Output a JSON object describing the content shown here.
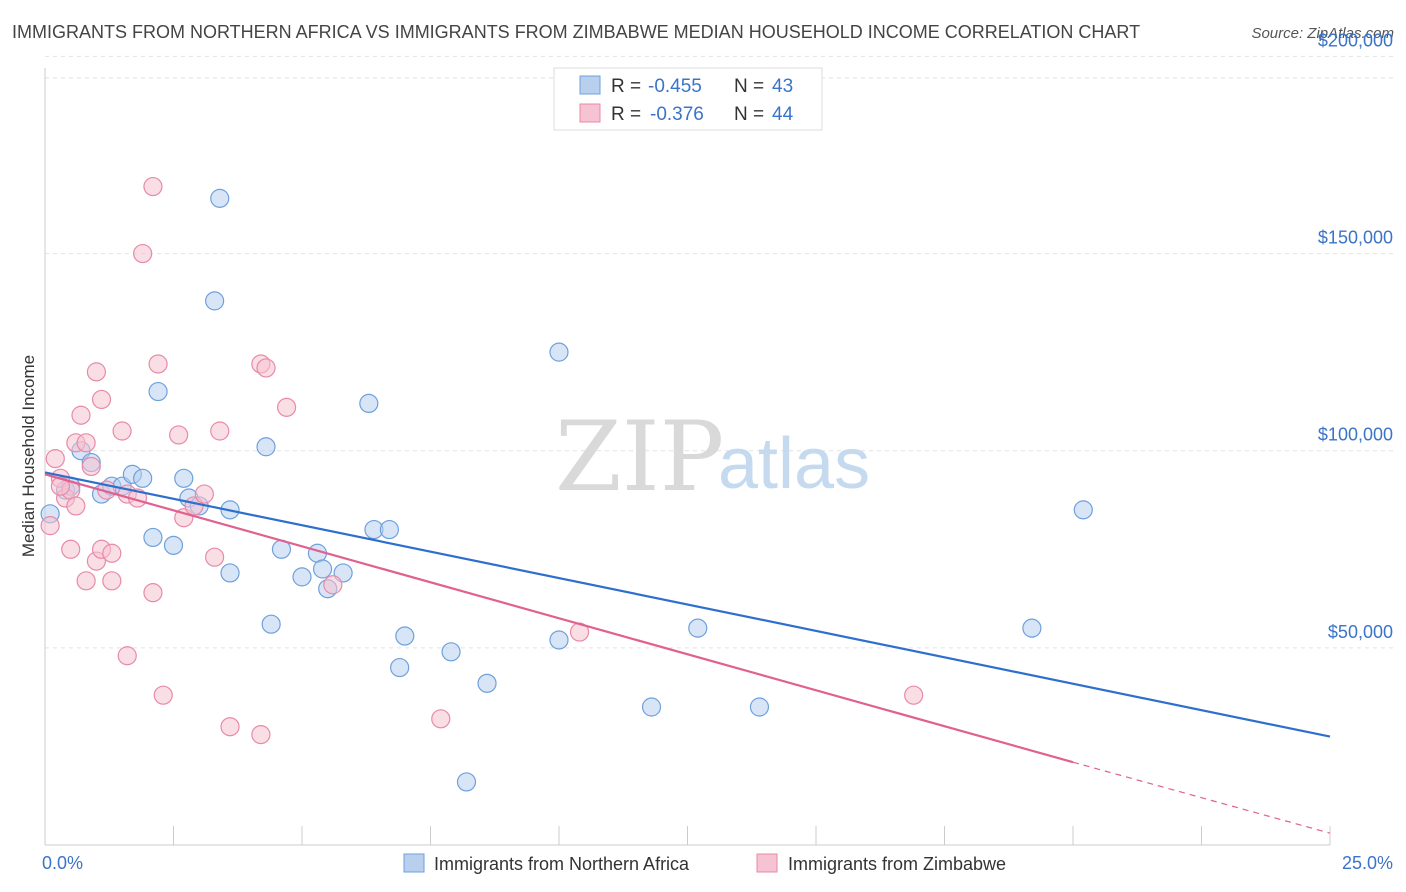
{
  "title": "IMMIGRANTS FROM NORTHERN AFRICA VS IMMIGRANTS FROM ZIMBABWE MEDIAN HOUSEHOLD INCOME CORRELATION CHART",
  "source": "Source: ZipAtlas.com",
  "watermark": {
    "zip": "ZIP",
    "atlas": "atlas"
  },
  "legend": {
    "r_label": "R =",
    "n_label": "N =",
    "rows": [
      {
        "r": "-0.455",
        "n": "43"
      },
      {
        "r": "-0.376",
        "n": "44"
      }
    ]
  },
  "colors": {
    "blue_fill": "#b8d0ee",
    "blue_stroke": "#6fa0dc",
    "blue_line": "#2e6fce",
    "pink_fill": "#f6c3d2",
    "pink_stroke": "#e88aa8",
    "pink_line": "#e06090"
  },
  "chart_data": {
    "type": "scatter",
    "xlabel": "",
    "ylabel": "Median Household Income",
    "xlim": [
      0,
      25
    ],
    "ylim": [
      0,
      210000
    ],
    "x_tick_labels": [
      {
        "value": 0,
        "label": "0.0%"
      },
      {
        "value": 25,
        "label": "25.0%"
      }
    ],
    "y_tick_labels": [
      {
        "value": 50000,
        "label": "$50,000"
      },
      {
        "value": 100000,
        "label": "$100,000"
      },
      {
        "value": 150000,
        "label": "$150,000"
      },
      {
        "value": 200000,
        "label": "$200,000"
      }
    ],
    "grid": true,
    "legend_position": "top-center",
    "series": [
      {
        "name": "Immigrants from Northern Africa",
        "trend": {
          "x": [
            0,
            25
          ],
          "y": [
            94500,
            27500
          ]
        },
        "points": [
          [
            0.1,
            84000
          ],
          [
            0.4,
            90000
          ],
          [
            0.5,
            91000
          ],
          [
            0.7,
            100000
          ],
          [
            0.9,
            97000
          ],
          [
            1.1,
            89000
          ],
          [
            1.3,
            91000
          ],
          [
            1.5,
            91000
          ],
          [
            1.7,
            94000
          ],
          [
            1.9,
            93000
          ],
          [
            2.1,
            78000
          ],
          [
            2.2,
            115000
          ],
          [
            2.5,
            76000
          ],
          [
            2.7,
            93000
          ],
          [
            2.8,
            88000
          ],
          [
            3.0,
            86000
          ],
          [
            3.3,
            138000
          ],
          [
            3.4,
            164000
          ],
          [
            3.6,
            85000
          ],
          [
            3.6,
            69000
          ],
          [
            4.3,
            101000
          ],
          [
            4.4,
            56000
          ],
          [
            4.6,
            75000
          ],
          [
            5.0,
            68000
          ],
          [
            5.3,
            74000
          ],
          [
            5.4,
            70000
          ],
          [
            5.5,
            65000
          ],
          [
            5.8,
            69000
          ],
          [
            6.3,
            112000
          ],
          [
            6.4,
            80000
          ],
          [
            6.7,
            80000
          ],
          [
            6.9,
            45000
          ],
          [
            7.0,
            53000
          ],
          [
            7.9,
            49000
          ],
          [
            8.2,
            16000
          ],
          [
            8.6,
            41000
          ],
          [
            10.0,
            52000
          ],
          [
            10.0,
            125000
          ],
          [
            11.8,
            35000
          ],
          [
            12.7,
            55000
          ],
          [
            13.9,
            35000
          ],
          [
            19.2,
            55000
          ],
          [
            20.2,
            85000
          ]
        ]
      },
      {
        "name": "Immigrants from Zimbabwe",
        "trend": {
          "x": [
            0,
            20
          ],
          "y": [
            94000,
            21000
          ]
        },
        "trend_dashed": {
          "x": [
            20,
            25
          ],
          "y": [
            21000,
            3000
          ]
        },
        "points": [
          [
            0.1,
            81000
          ],
          [
            0.2,
            98000
          ],
          [
            0.3,
            93000
          ],
          [
            0.4,
            88000
          ],
          [
            0.5,
            75000
          ],
          [
            0.5,
            90000
          ],
          [
            0.6,
            102000
          ],
          [
            0.6,
            86000
          ],
          [
            0.7,
            109000
          ],
          [
            0.8,
            102000
          ],
          [
            0.8,
            67000
          ],
          [
            0.9,
            96000
          ],
          [
            1.0,
            120000
          ],
          [
            1.0,
            72000
          ],
          [
            1.1,
            113000
          ],
          [
            1.1,
            75000
          ],
          [
            1.2,
            90000
          ],
          [
            1.3,
            67000
          ],
          [
            1.3,
            74000
          ],
          [
            1.5,
            105000
          ],
          [
            1.6,
            48000
          ],
          [
            1.6,
            89000
          ],
          [
            1.9,
            150000
          ],
          [
            1.8,
            88000
          ],
          [
            2.1,
            167000
          ],
          [
            2.1,
            64000
          ],
          [
            2.2,
            122000
          ],
          [
            2.3,
            38000
          ],
          [
            2.6,
            104000
          ],
          [
            2.7,
            83000
          ],
          [
            2.9,
            86000
          ],
          [
            3.1,
            89000
          ],
          [
            3.3,
            73000
          ],
          [
            3.4,
            105000
          ],
          [
            3.6,
            30000
          ],
          [
            4.2,
            28000
          ],
          [
            4.2,
            122000
          ],
          [
            4.3,
            121000
          ],
          [
            4.7,
            111000
          ],
          [
            5.6,
            66000
          ],
          [
            7.7,
            32000
          ],
          [
            10.4,
            54000
          ],
          [
            16.9,
            38000
          ],
          [
            0.3,
            91000
          ]
        ]
      }
    ]
  }
}
